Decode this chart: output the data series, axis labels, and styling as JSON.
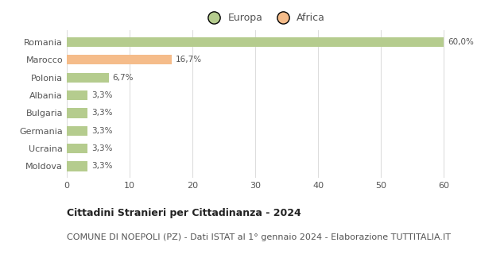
{
  "categories": [
    "Moldova",
    "Ucraina",
    "Germania",
    "Bulgaria",
    "Albania",
    "Polonia",
    "Marocco",
    "Romania"
  ],
  "values": [
    3.3,
    3.3,
    3.3,
    3.3,
    3.3,
    6.7,
    16.7,
    60.0
  ],
  "labels": [
    "3,3%",
    "3,3%",
    "3,3%",
    "3,3%",
    "3,3%",
    "6,7%",
    "16,7%",
    "60,0%"
  ],
  "colors": [
    "#b5cc8e",
    "#b5cc8e",
    "#b5cc8e",
    "#b5cc8e",
    "#b5cc8e",
    "#b5cc8e",
    "#f5bc8a",
    "#b5cc8e"
  ],
  "legend_labels": [
    "Europa",
    "Africa"
  ],
  "legend_colors": [
    "#b5cc8e",
    "#f5bc8a"
  ],
  "xlim": [
    0,
    63
  ],
  "title_bold": "Cittadini Stranieri per Cittadinanza - 2024",
  "subtitle": "COMUNE DI NOEPOLI (PZ) - Dati ISTAT al 1° gennaio 2024 - Elaborazione TUTTITALIA.IT",
  "title_fontsize": 9,
  "subtitle_fontsize": 8,
  "label_fontsize": 7.5,
  "tick_fontsize": 8,
  "legend_fontsize": 9,
  "background_color": "#ffffff",
  "grid_color": "#dddddd",
  "text_color": "#555555"
}
